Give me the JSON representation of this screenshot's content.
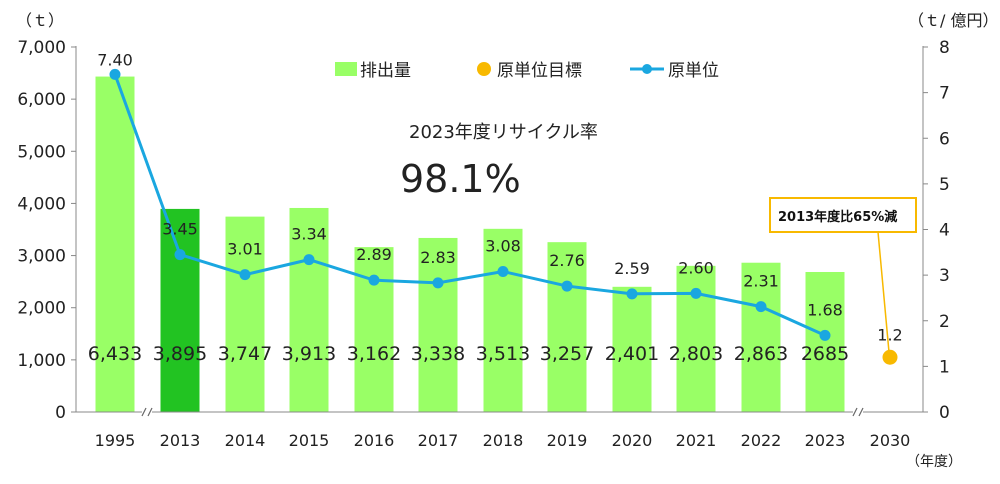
{
  "chart_data": {
    "type": "bar+line",
    "categories": [
      "1995",
      "2013",
      "2014",
      "2015",
      "2016",
      "2017",
      "2018",
      "2019",
      "2020",
      "2021",
      "2022",
      "2023",
      "2030"
    ],
    "series": [
      {
        "name": "排出量",
        "kind": "bar",
        "axis": "left",
        "values": [
          6433,
          3895,
          3747,
          3913,
          3162,
          3338,
          3513,
          3257,
          2401,
          2803,
          2863,
          2685,
          null
        ],
        "labels": [
          "6,433",
          "3,895",
          "3,747",
          "3,913",
          "3,162",
          "3,338",
          "3,513",
          "3,257",
          "2,401",
          "2,803",
          "2,863",
          "2685",
          ""
        ],
        "color": "#99ff66",
        "highlight_color": "#22c322",
        "highlight_index": 1
      },
      {
        "name": "原単位",
        "kind": "line",
        "axis": "right",
        "values": [
          7.4,
          3.45,
          3.01,
          3.34,
          2.89,
          2.83,
          3.08,
          2.76,
          2.59,
          2.6,
          2.31,
          1.68,
          null
        ],
        "labels": [
          "7.40",
          "3.45",
          "3.01",
          "3.34",
          "2.89",
          "2.83",
          "3.08",
          "2.76",
          "2.59",
          "2.60",
          "2.31",
          "1.68",
          ""
        ],
        "color": "#1aa7e0"
      },
      {
        "name": "原単位目標",
        "kind": "point",
        "axis": "right",
        "values": [
          null,
          null,
          null,
          null,
          null,
          null,
          null,
          null,
          null,
          null,
          null,
          null,
          1.2
        ],
        "labels": [
          "",
          "",
          "",
          "",
          "",
          "",
          "",
          "",
          "",
          "",
          "",
          "",
          "1.2"
        ],
        "color": "#f8b900"
      }
    ],
    "left_axis": {
      "unit": "（ｔ）",
      "ticks": [
        "0",
        "1,000",
        "2,000",
        "3,000",
        "4,000",
        "5,000",
        "6,000",
        "7,000"
      ],
      "range": [
        0,
        7000
      ]
    },
    "right_axis": {
      "unit": "（ｔ/ 億円）",
      "ticks": [
        "0",
        "1",
        "2",
        "3",
        "4",
        "5",
        "6",
        "7",
        "8"
      ],
      "range": [
        0,
        8
      ]
    },
    "x_unit": "（年度）",
    "legend": {
      "placement": "top-center",
      "items": [
        "排出量",
        "原単位目標",
        "原単位"
      ]
    },
    "annotations": {
      "recycle_title": "2023年度リサイクル率",
      "recycle_value": "98.1%",
      "target_callout": "2013年度比65%減"
    },
    "axis_breaks": [
      "1995-2013",
      "2023-2030"
    ],
    "grid": false
  }
}
